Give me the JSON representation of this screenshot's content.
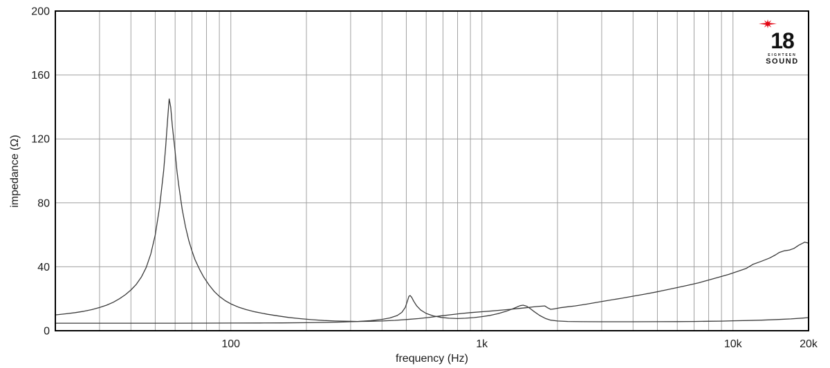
{
  "chart_data": {
    "type": "line",
    "title": "",
    "xlabel": "frequency (Hz)",
    "ylabel": "impedance (Ω)",
    "x_scale": "log",
    "xlim": [
      20,
      20000
    ],
    "ylim": [
      0,
      200
    ],
    "grid": true,
    "legend_position": "none",
    "x_gridlines": [
      30,
      40,
      50,
      60,
      70,
      80,
      90,
      100,
      200,
      300,
      400,
      500,
      600,
      700,
      800,
      900,
      1000,
      2000,
      3000,
      4000,
      5000,
      6000,
      7000,
      8000,
      9000,
      10000,
      20000
    ],
    "y_gridlines": [
      40,
      80,
      120,
      160
    ],
    "x_ticks": [
      {
        "value": 100,
        "label": "100"
      },
      {
        "value": 1000,
        "label": "1k"
      },
      {
        "value": 10000,
        "label": "10k"
      },
      {
        "value": 20000,
        "label": "20k"
      }
    ],
    "y_ticks": [
      {
        "value": 0,
        "label": "0"
      },
      {
        "value": 40,
        "label": "40"
      },
      {
        "value": 80,
        "label": "80"
      },
      {
        "value": 120,
        "label": "120"
      },
      {
        "value": 160,
        "label": "160"
      },
      {
        "value": 200,
        "label": "200"
      }
    ],
    "series": [
      {
        "name": "impedance-curve-main",
        "description": "main impedance curve, resonance peak ~145 ohm at ~57 Hz, minimum ~5.8 ohm near 300 Hz, rising to ~55 ohm at 20 kHz",
        "points": [
          [
            20,
            9.9
          ],
          [
            22,
            10.6
          ],
          [
            24,
            11.3
          ],
          [
            26,
            12.2
          ],
          [
            28,
            13.2
          ],
          [
            30,
            14.5
          ],
          [
            32,
            16
          ],
          [
            34,
            17.8
          ],
          [
            36,
            20
          ],
          [
            38,
            22.5
          ],
          [
            40,
            25.5
          ],
          [
            42,
            29
          ],
          [
            44,
            33.5
          ],
          [
            46,
            39.5
          ],
          [
            48,
            48
          ],
          [
            50,
            60
          ],
          [
            52,
            77
          ],
          [
            54,
            100
          ],
          [
            55,
            115
          ],
          [
            56,
            132
          ],
          [
            56.8,
            145
          ],
          [
            57.6,
            140
          ],
          [
            58.5,
            128
          ],
          [
            60,
            112
          ],
          [
            61,
            100
          ],
          [
            62,
            91
          ],
          [
            64,
            76
          ],
          [
            66,
            65
          ],
          [
            68,
            56.5
          ],
          [
            70,
            50
          ],
          [
            72,
            44.5
          ],
          [
            75,
            38.5
          ],
          [
            78,
            33.5
          ],
          [
            82,
            28.5
          ],
          [
            86,
            24.5
          ],
          [
            90,
            21.5
          ],
          [
            95,
            18.8
          ],
          [
            100,
            16.8
          ],
          [
            107,
            14.8
          ],
          [
            115,
            13.2
          ],
          [
            125,
            11.8
          ],
          [
            140,
            10.3
          ],
          [
            155,
            9.2
          ],
          [
            170,
            8.3
          ],
          [
            190,
            7.5
          ],
          [
            210,
            6.9
          ],
          [
            235,
            6.4
          ],
          [
            260,
            6.1
          ],
          [
            290,
            5.9
          ],
          [
            320,
            5.8
          ],
          [
            360,
            5.9
          ],
          [
            400,
            6.1
          ],
          [
            450,
            6.5
          ],
          [
            500,
            7
          ],
          [
            560,
            7.6
          ],
          [
            620,
            8.4
          ],
          [
            680,
            9.2
          ],
          [
            750,
            10
          ],
          [
            830,
            10.8
          ],
          [
            900,
            11.3
          ],
          [
            1000,
            11.9
          ],
          [
            1100,
            12.4
          ],
          [
            1200,
            12.9
          ],
          [
            1300,
            13.4
          ],
          [
            1400,
            13.9
          ],
          [
            1500,
            14.4
          ],
          [
            1600,
            14.9
          ],
          [
            1700,
            15.3
          ],
          [
            1780,
            15.5
          ],
          [
            1830,
            14.3
          ],
          [
            1880,
            13.4
          ],
          [
            1950,
            13.7
          ],
          [
            2050,
            14.4
          ],
          [
            2200,
            15
          ],
          [
            2350,
            15.5
          ],
          [
            2600,
            16.6
          ],
          [
            2900,
            17.9
          ],
          [
            3200,
            19
          ],
          [
            3600,
            20.3
          ],
          [
            4000,
            21.6
          ],
          [
            4400,
            22.7
          ],
          [
            4900,
            24.1
          ],
          [
            5400,
            25.5
          ],
          [
            6000,
            27
          ],
          [
            6600,
            28.4
          ],
          [
            7300,
            30
          ],
          [
            8000,
            31.7
          ],
          [
            8800,
            33.5
          ],
          [
            9600,
            35.2
          ],
          [
            10500,
            37.3
          ],
          [
            11300,
            39
          ],
          [
            12000,
            41.5
          ],
          [
            13000,
            43.5
          ],
          [
            14000,
            45.5
          ],
          [
            14800,
            47.5
          ],
          [
            15300,
            49
          ],
          [
            16000,
            50
          ],
          [
            16800,
            50.5
          ],
          [
            17500,
            51.5
          ],
          [
            18300,
            53.5
          ],
          [
            19000,
            54.8
          ],
          [
            19300,
            55.4
          ],
          [
            20000,
            54.8
          ]
        ]
      },
      {
        "name": "impedance-curve-secondary",
        "description": "second impedance curve, flat ~4.7 ohm at low frequency, resonance ~22 ohm at ~510 Hz, secondary peak ~16 ohm at ~1.45 kHz, then flat ~6 ohm",
        "points": [
          [
            20,
            4.7
          ],
          [
            30,
            4.7
          ],
          [
            40,
            4.7
          ],
          [
            60,
            4.7
          ],
          [
            80,
            4.75
          ],
          [
            100,
            4.8
          ],
          [
            130,
            4.85
          ],
          [
            160,
            4.9
          ],
          [
            200,
            5
          ],
          [
            240,
            5.2
          ],
          [
            280,
            5.45
          ],
          [
            320,
            5.8
          ],
          [
            360,
            6.3
          ],
          [
            400,
            7.1
          ],
          [
            430,
            8
          ],
          [
            460,
            9.5
          ],
          [
            480,
            11.5
          ],
          [
            495,
            14.5
          ],
          [
            505,
            18.5
          ],
          [
            512,
            21.5
          ],
          [
            518,
            22
          ],
          [
            525,
            21
          ],
          [
            535,
            18.5
          ],
          [
            550,
            15.5
          ],
          [
            570,
            13
          ],
          [
            600,
            10.8
          ],
          [
            640,
            9.3
          ],
          [
            690,
            8.3
          ],
          [
            740,
            7.8
          ],
          [
            800,
            7.6
          ],
          [
            860,
            7.8
          ],
          [
            930,
            8.2
          ],
          [
            1000,
            8.8
          ],
          [
            1080,
            9.6
          ],
          [
            1160,
            10.7
          ],
          [
            1250,
            12.2
          ],
          [
            1340,
            14
          ],
          [
            1420,
            15.7
          ],
          [
            1460,
            16
          ],
          [
            1510,
            15.3
          ],
          [
            1560,
            13.8
          ],
          [
            1620,
            11.8
          ],
          [
            1700,
            9.5
          ],
          [
            1790,
            7.7
          ],
          [
            1880,
            6.6
          ],
          [
            2000,
            6.1
          ],
          [
            2200,
            5.8
          ],
          [
            2500,
            5.65
          ],
          [
            3000,
            5.6
          ],
          [
            3500,
            5.6
          ],
          [
            4000,
            5.6
          ],
          [
            5000,
            5.65
          ],
          [
            6000,
            5.7
          ],
          [
            7000,
            5.8
          ],
          [
            8000,
            5.9
          ],
          [
            9000,
            6
          ],
          [
            10000,
            6.2
          ],
          [
            11500,
            6.4
          ],
          [
            13000,
            6.6
          ],
          [
            15000,
            7
          ],
          [
            17000,
            7.4
          ],
          [
            19000,
            7.9
          ],
          [
            20000,
            8.2
          ]
        ]
      }
    ]
  },
  "logo": {
    "number": "18",
    "line1": "EIGHTEEN",
    "line2": "SOUND",
    "accent_color": "#e30613"
  },
  "colors": {
    "curve": "#3a3a3a",
    "grid": "#a0a0a0",
    "frame": "#000000",
    "background": "#ffffff",
    "text": "#1a1a1a"
  }
}
